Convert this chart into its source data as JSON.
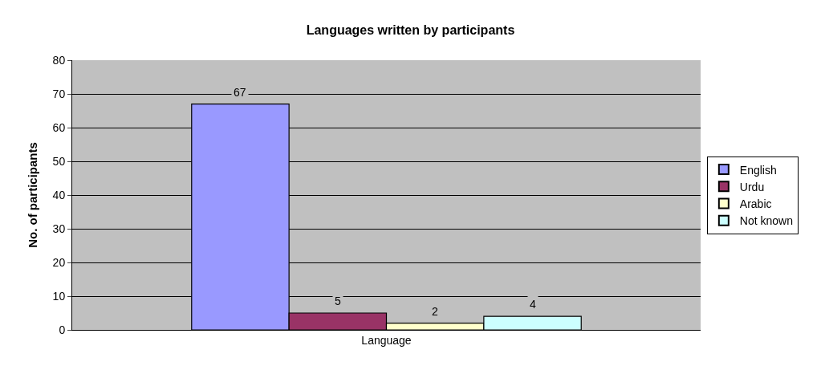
{
  "chart_data": {
    "type": "bar",
    "title": "Languages written by participants",
    "ylabel": "No. of participants",
    "categories": [
      "Language"
    ],
    "series": [
      {
        "name": "English",
        "color": "#9999ff",
        "values": [
          67
        ]
      },
      {
        "name": "Urdu",
        "color": "#993366",
        "values": [
          5
        ]
      },
      {
        "name": "Arabic",
        "color": "#ffffcc",
        "values": [
          2
        ]
      },
      {
        "name": "Not known",
        "color": "#ccffff",
        "values": [
          4
        ]
      }
    ],
    "ylim": [
      0,
      80
    ],
    "yticks": [
      0,
      10,
      20,
      30,
      40,
      50,
      60,
      70,
      80
    ],
    "grid": "y",
    "legend": "right",
    "data_labels": true
  }
}
